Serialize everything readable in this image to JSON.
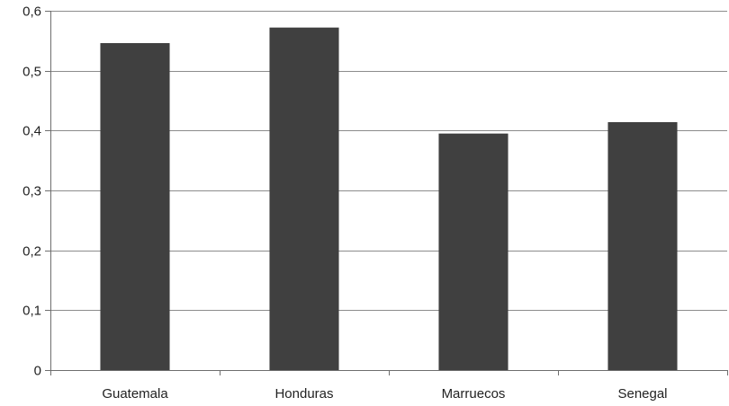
{
  "chart_data": {
    "type": "bar",
    "title": "",
    "xlabel": "",
    "ylabel": "",
    "categories": [
      "Guatemala",
      "Honduras",
      "Marruecos",
      "Senegal"
    ],
    "values": [
      0.546,
      0.572,
      0.395,
      0.414
    ],
    "ylim": [
      0,
      0.6
    ],
    "yticks": [
      0,
      0.1,
      0.2,
      0.3,
      0.4,
      0.5,
      0.6
    ],
    "ytick_labels": [
      "0",
      "0,1",
      "0,2",
      "0,3",
      "0,4",
      "0,5",
      "0,6"
    ],
    "grid": "horizontal",
    "legend": "none",
    "colors": {
      "bar": "#404040",
      "grid": "#8c8c8c",
      "axis": "#6e6e6e",
      "text": "#222222"
    }
  }
}
